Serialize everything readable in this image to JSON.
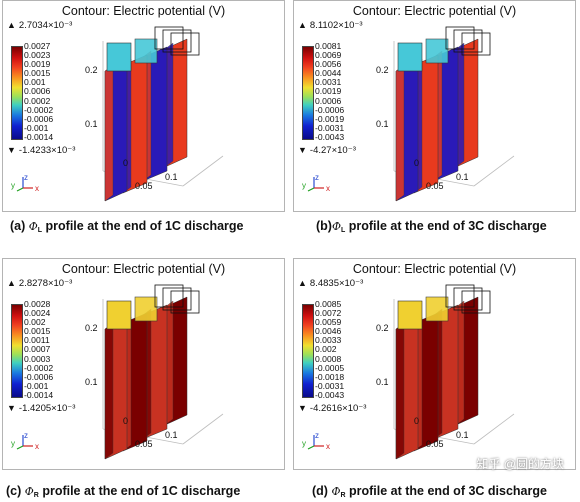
{
  "panels": [
    {
      "title": "Contour: Electric potential (V)",
      "max_label": "2.7034×10⁻³",
      "min_label": "-1.4233×10⁻³",
      "ticks": [
        "0.0027",
        "0.0023",
        "0.0019",
        "0.0015",
        "0.001",
        "0.0006",
        "0.0002",
        "-0.0002",
        "-0.0006",
        "-0.001",
        "-0.0014"
      ],
      "caption_prefix": "(a) ",
      "caption_symbol": "Φ",
      "caption_sub": "L",
      "caption_text": " profile at the end of 1C discharge",
      "axis_labels": {
        "z1": "0.2",
        "z2": "0.1",
        "o": "0",
        "x1": "0.05",
        "x2": "0.1"
      },
      "colors": {
        "main": "#2a1ab8",
        "top": "#46c8d8",
        "hot": "#e83a1e"
      }
    },
    {
      "title": "Contour: Electric potential (V)",
      "max_label": "8.1102×10⁻³",
      "min_label": "-4.27×10⁻³",
      "ticks": [
        "0.0081",
        "0.0069",
        "0.0056",
        "0.0044",
        "0.0031",
        "0.0019",
        "0.0006",
        "-0.0006",
        "-0.0019",
        "-0.0031",
        "-0.0043"
      ],
      "caption_prefix": "(b)",
      "caption_symbol": "Φ",
      "caption_sub": "L",
      "caption_text": " profile at the end of 3C discharge",
      "axis_labels": {
        "z1": "0.2",
        "z2": "0.1",
        "o": "0",
        "x1": "0.05",
        "x2": "0.1"
      },
      "colors": {
        "main": "#2a1ab8",
        "top": "#46c8d8",
        "hot": "#e83a1e"
      }
    },
    {
      "title": "Contour: Electric potential (V)",
      "max_label": "2.8278×10⁻³",
      "min_label": "-1.4205×10⁻³",
      "ticks": [
        "0.0028",
        "0.0024",
        "0.002",
        "0.0015",
        "0.0011",
        "0.0007",
        "0.0003",
        "-0.0002",
        "-0.0006",
        "-0.001",
        "-0.0014"
      ],
      "caption_prefix": "(c) ",
      "caption_symbol": "Φ",
      "caption_sub": "R",
      "caption_text": " profile at the end of 1C discharge",
      "axis_labels": {
        "z1": "0.2",
        "z2": "0.1",
        "o": "0",
        "x1": "0.05",
        "x2": "0.1"
      },
      "colors": {
        "main": "#c83222",
        "top": "#f0d030",
        "hot": "#7a0000"
      }
    },
    {
      "title": "Contour: Electric potential (V)",
      "max_label": "8.4835×10⁻³",
      "min_label": "-4.2616×10⁻³",
      "ticks": [
        "0.0085",
        "0.0072",
        "0.0059",
        "0.0046",
        "0.0033",
        "0.002",
        "0.0008",
        "-0.0005",
        "-0.0018",
        "-0.0031",
        "-0.0043"
      ],
      "caption_prefix": "(d) ",
      "caption_symbol": "Φ",
      "caption_sub": "R",
      "caption_text": " profile at the end of 3C discharge",
      "axis_labels": {
        "z1": "0.2",
        "z2": "0.1",
        "o": "0",
        "x1": "0.05",
        "x2": "0.1"
      },
      "colors": {
        "main": "#c83222",
        "top": "#f0d030",
        "hot": "#7a0000"
      }
    }
  ],
  "axis_letters": {
    "y": "y",
    "z": "z",
    "x": "x"
  },
  "watermark": "知乎 @圆的方块"
}
